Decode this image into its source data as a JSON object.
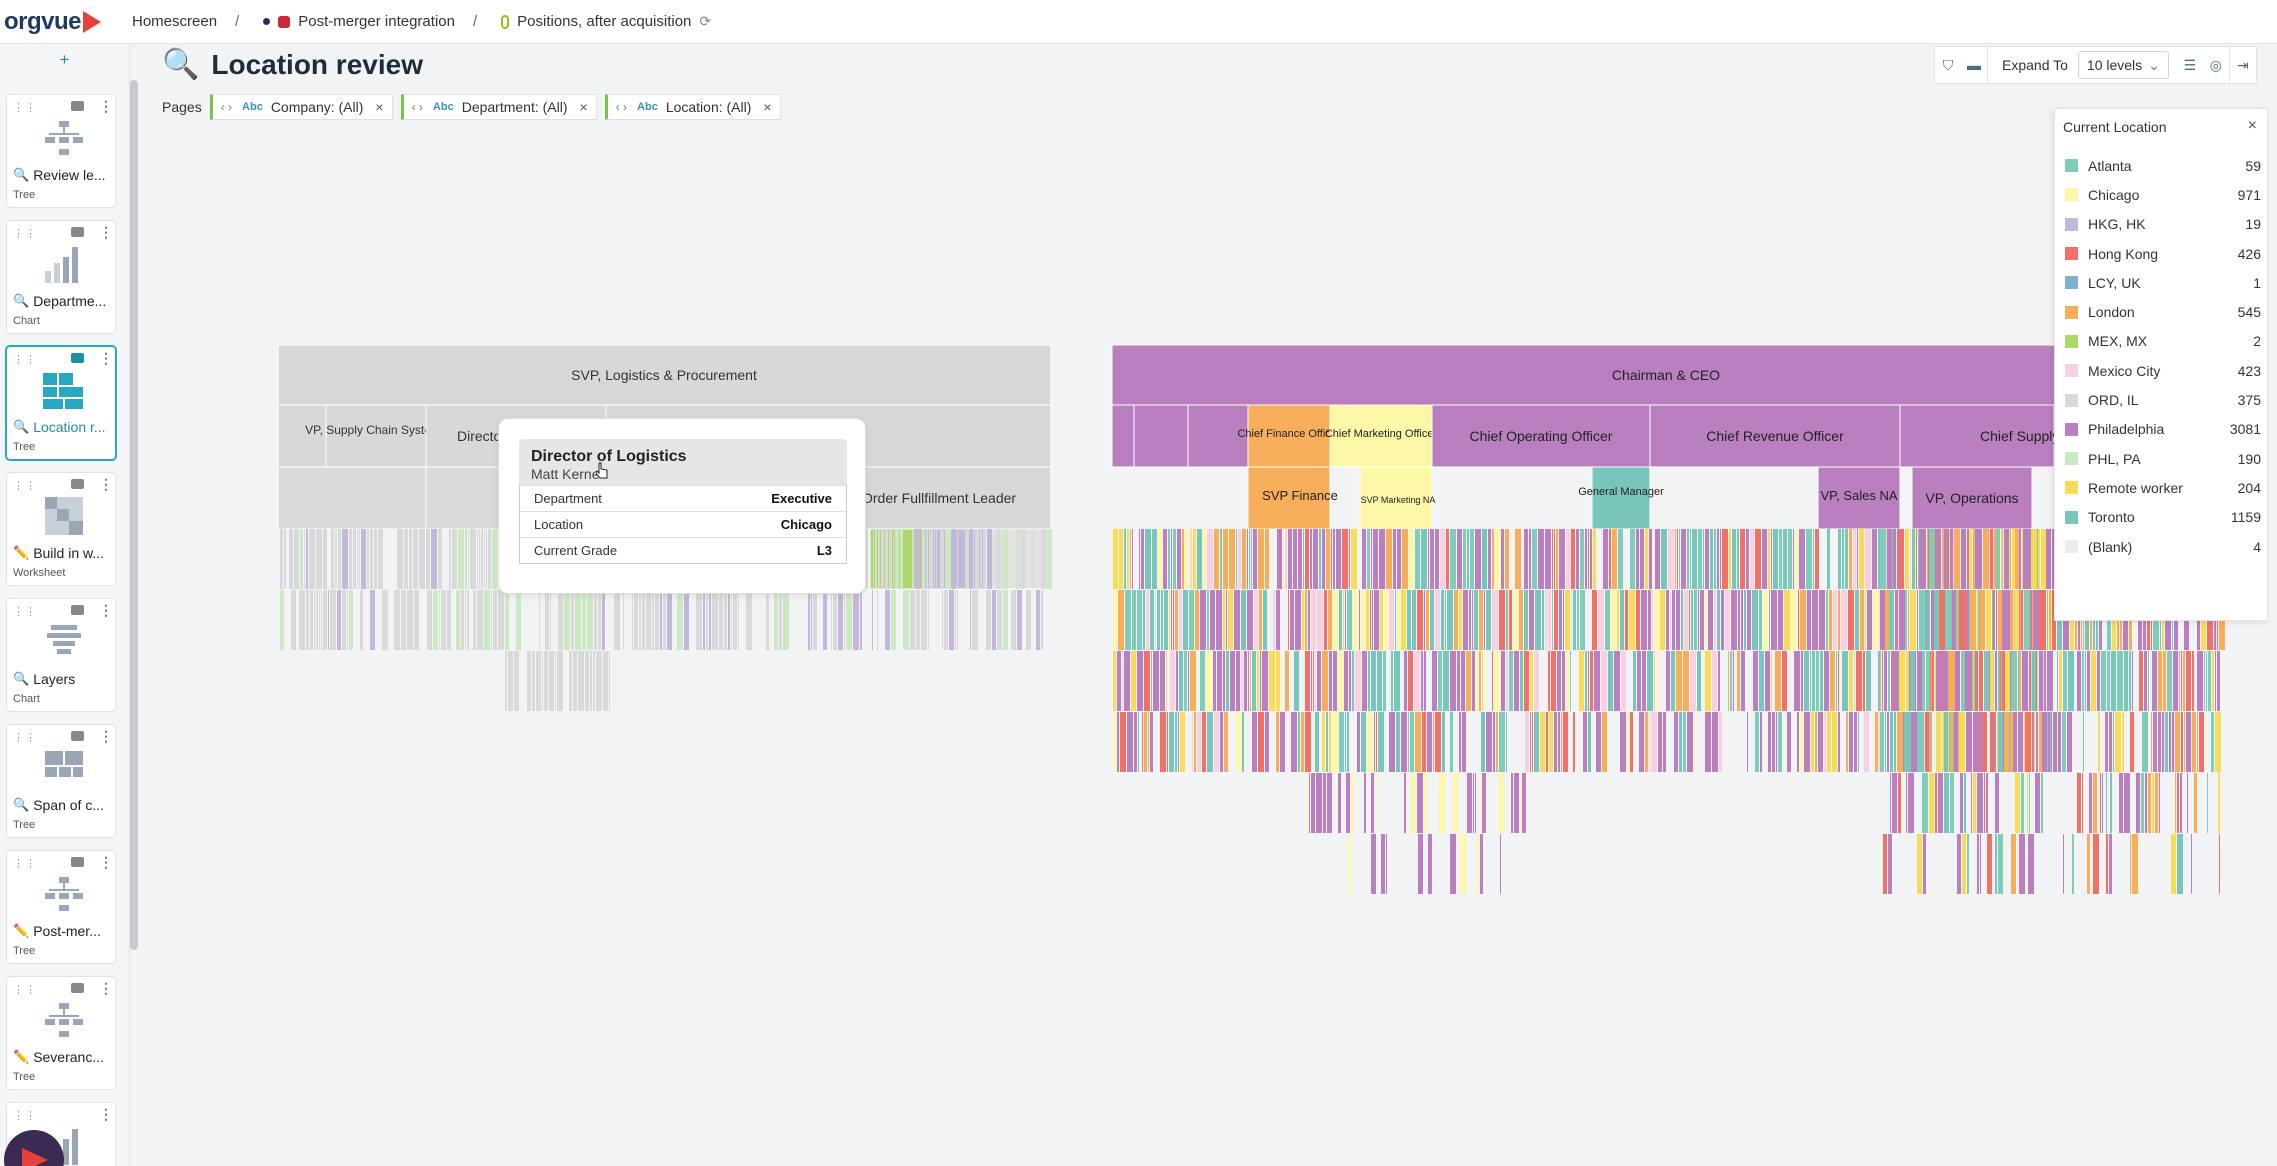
{
  "brand": {
    "name": "orgvue",
    "accent": "#e8413c"
  },
  "breadcrumb": [
    "Homescreen",
    "Post-merger integration",
    "Positions, after acquisition"
  ],
  "sidebar": {
    "add_label": "+",
    "cards": [
      {
        "label": "Review le...",
        "type": "Tree",
        "mode": "view"
      },
      {
        "label": "Departme...",
        "type": "Chart",
        "mode": "view"
      },
      {
        "label": "Location r...",
        "type": "Tree",
        "mode": "view",
        "active": true
      },
      {
        "label": "Build in w...",
        "type": "Worksheet",
        "mode": "edit"
      },
      {
        "label": "Layers",
        "type": "Chart",
        "mode": "view"
      },
      {
        "label": "Span of c...",
        "type": "Tree",
        "mode": "view"
      },
      {
        "label": "Post-mer...",
        "type": "Tree",
        "mode": "edit"
      },
      {
        "label": "Severanc...",
        "type": "Tree",
        "mode": "edit"
      }
    ]
  },
  "page": {
    "title": "Location review"
  },
  "toolbar": {
    "expand_label": "Expand To",
    "levels": "10 levels"
  },
  "pages": {
    "label": "Pages",
    "filters": [
      {
        "abc": "Abc",
        "text": "Company: (All)"
      },
      {
        "abc": "Abc",
        "text": "Department: (All)"
      },
      {
        "abc": "Abc",
        "text": "Location: (All)"
      }
    ]
  },
  "tree": {
    "left_root": "SVP, Logistics & Procurement",
    "left_l2": [
      "VP, Supply Chain Systems",
      "Director",
      "Order Fullfillment Leader"
    ],
    "right_root": "Chairman & CEO",
    "right_l2": [
      "Chief Finance Officer",
      "Chief Marketing Officer",
      "Chief Operating Officer",
      "Chief Revenue Officer",
      "Chief Supply"
    ],
    "right_l3": [
      "SVP Finance",
      "SVP Marketing NA",
      "General Manager",
      "VP, Sales NA",
      "VP, Operations"
    ]
  },
  "tooltip": {
    "title": "Director of Logistics",
    "name": "Matt Kerne",
    "rows": [
      {
        "label": "Department",
        "value": "Executive"
      },
      {
        "label": "Location",
        "value": "Chicago"
      },
      {
        "label": "Current Grade",
        "value": "L3"
      }
    ]
  },
  "legend": {
    "title": "Current Location",
    "items": [
      {
        "name": "Atlanta",
        "count": "59",
        "color": "#7fcdb9"
      },
      {
        "name": "Chicago",
        "count": "971",
        "color": "#fdf8a8"
      },
      {
        "name": "HKG, HK",
        "count": "19",
        "color": "#c3b8da"
      },
      {
        "name": "Hong Kong",
        "count": "426",
        "color": "#f07167"
      },
      {
        "name": "LCY, UK",
        "count": "1",
        "color": "#7fb1cf"
      },
      {
        "name": "London",
        "count": "545",
        "color": "#f7ae5a"
      },
      {
        "name": "MEX, MX",
        "count": "2",
        "color": "#acd86a"
      },
      {
        "name": "Mexico City",
        "count": "423",
        "color": "#f9d0e2"
      },
      {
        "name": "ORD, IL",
        "count": "375",
        "color": "#d9d9d9"
      },
      {
        "name": "Philadelphia",
        "count": "3081",
        "color": "#b97fbf"
      },
      {
        "name": "PHL, PA",
        "count": "190",
        "color": "#cbe9c3"
      },
      {
        "name": "Remote worker",
        "count": "204",
        "color": "#f7dc5a"
      },
      {
        "name": "Toronto",
        "count": "1159",
        "color": "#78c5ba"
      },
      {
        "name": "(Blank)",
        "count": "4",
        "color": "#ececec"
      }
    ]
  }
}
